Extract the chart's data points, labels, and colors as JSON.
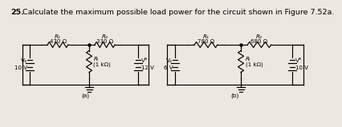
{
  "title_bold": "25.",
  "title_rest": " Calculate the maximum possible load power for the circuit shown in Figure 7.52a.",
  "title_fontsize": 6.8,
  "bg_color": "#ede8df",
  "circuit_a": {
    "R1_label": "R₁",
    "R1_val": "470 Ω",
    "R2_label": "R₂",
    "R2_val": "330 Ω",
    "RL_label": "Rₗ",
    "RL_val": "(1 kΩ)",
    "VA_label": "V₄",
    "VA_val": "10 V",
    "VB_label": "Vᴮ",
    "VB_val": "12 V",
    "label": "(a)"
  },
  "circuit_b": {
    "R1_label": "R₁",
    "R1_val": "780 Ω",
    "R2_label": "R₂",
    "R2_val": "680 Ω",
    "RL_label": "Rₗ",
    "RL_val": "(1 kΩ)",
    "VA_label": "V₄",
    "VA_val": "6 V",
    "VB_label": "Vᴮ",
    "VB_val": "10 V",
    "label": "(b)"
  }
}
